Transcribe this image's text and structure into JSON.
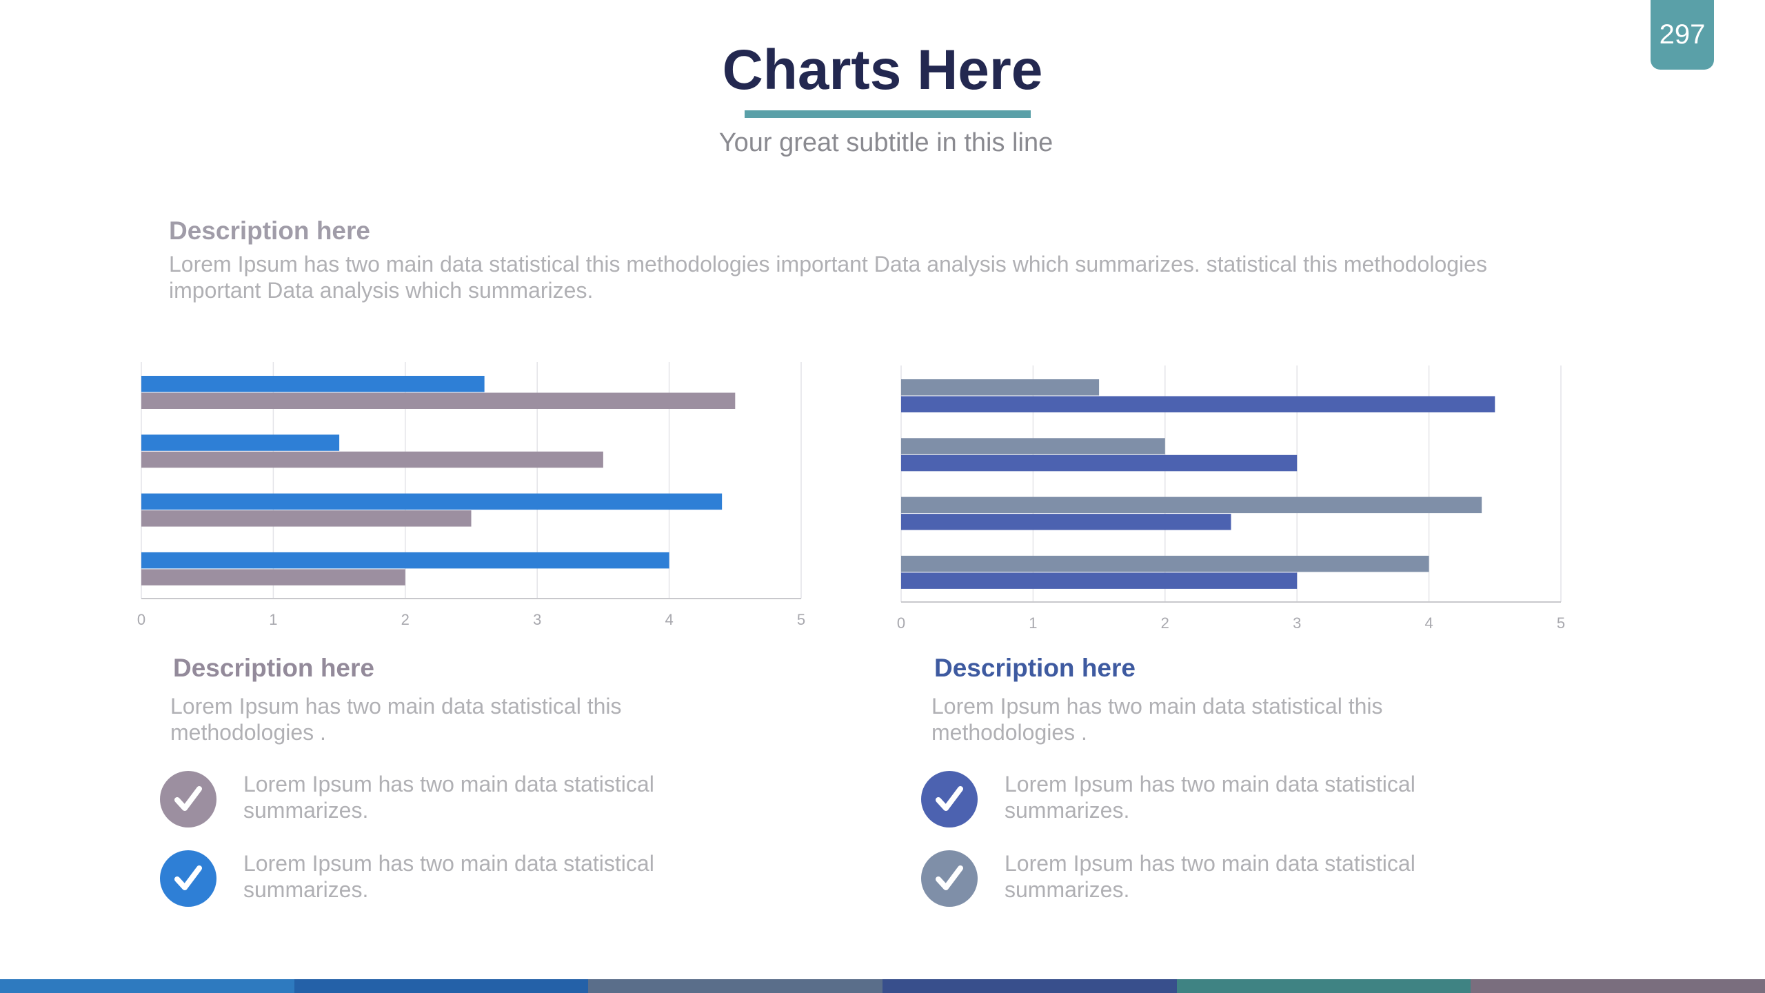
{
  "page_number": "297",
  "title": "Charts Here",
  "subtitle": "Your great subtitle in this line",
  "colors": {
    "accent_teal": "#5aa0a8",
    "title_navy": "#232850",
    "series_blue": "#2e7fd6",
    "series_mauve": "#9c8fa0",
    "series_slate": "#7f8fa8",
    "series_indigo": "#4c62b0"
  },
  "top_description": {
    "heading": "Description here",
    "text": "Lorem Ipsum has two main data statistical this methodologies important Data analysis which summarizes. statistical this methodologies important Data analysis which summarizes."
  },
  "left_panel": {
    "heading": "Description here",
    "text": "Lorem Ipsum has two main data statistical this methodologies .",
    "items": [
      {
        "icon": "check-icon",
        "color": "#9c8fa0",
        "text": "Lorem Ipsum has two main data statistical summarizes."
      },
      {
        "icon": "check-icon",
        "color": "#2e7fd6",
        "text": "Lorem Ipsum has two main data statistical summarizes."
      }
    ]
  },
  "right_panel": {
    "heading": "Description here",
    "text": "Lorem Ipsum has two main data statistical this methodologies .",
    "items": [
      {
        "icon": "check-icon",
        "color": "#4c62b0",
        "text": "Lorem Ipsum has two main data statistical summarizes."
      },
      {
        "icon": "check-icon",
        "color": "#7f8fa8",
        "text": "Lorem Ipsum has two main data statistical summarizes."
      }
    ]
  },
  "footer_colors": [
    "#2e7abf",
    "#2461a8",
    "#5a6e8a",
    "#384f8c",
    "#3f8383",
    "#7a6e7e"
  ],
  "chart_data": [
    {
      "type": "bar",
      "orientation": "horizontal",
      "xlim": [
        0,
        5
      ],
      "ticks": [
        "0",
        "1",
        "2",
        "3",
        "4",
        "5"
      ],
      "grid": true,
      "series": [
        {
          "color": "#2e7fd6",
          "values": [
            2.6,
            1.5,
            4.4,
            4.0
          ]
        },
        {
          "color": "#9c8fa0",
          "values": [
            4.5,
            3.5,
            2.5,
            2.0
          ]
        }
      ]
    },
    {
      "type": "bar",
      "orientation": "horizontal",
      "xlim": [
        0,
        5
      ],
      "ticks": [
        "0",
        "1",
        "2",
        "3",
        "4",
        "5"
      ],
      "grid": true,
      "series": [
        {
          "color": "#7f8fa8",
          "values": [
            1.5,
            2.0,
            4.4,
            4.0
          ]
        },
        {
          "color": "#4c62b0",
          "values": [
            4.5,
            3.0,
            2.5,
            3.0
          ]
        }
      ]
    }
  ]
}
